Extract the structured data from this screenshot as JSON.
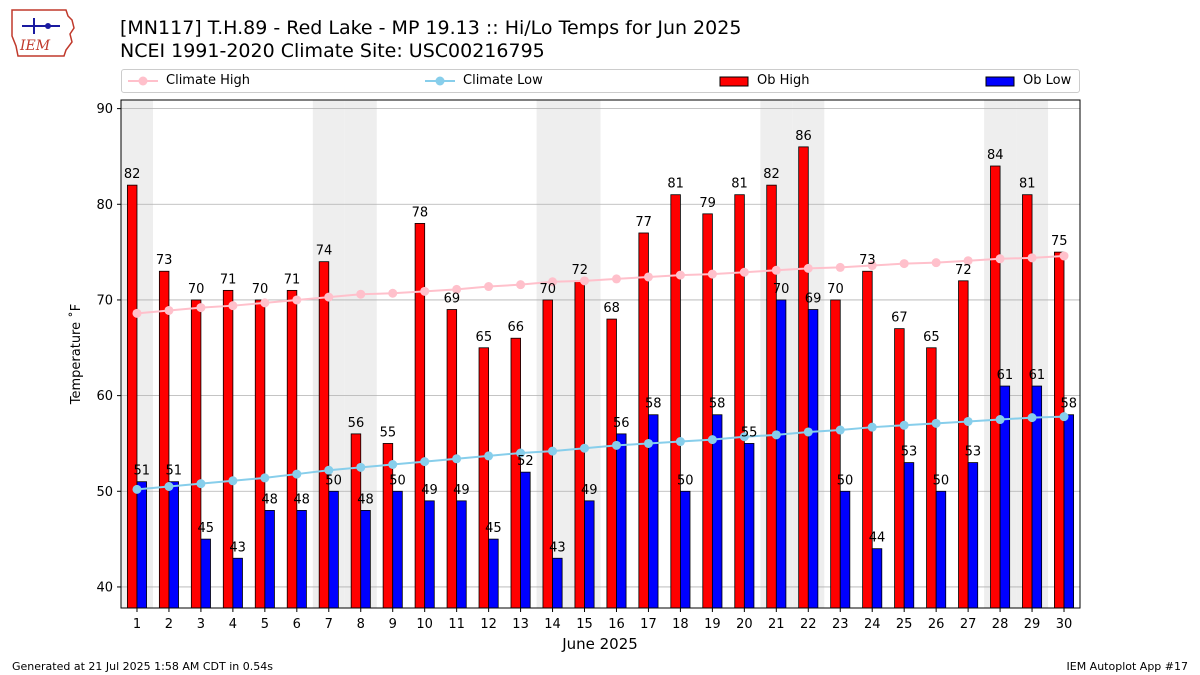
{
  "logo": {
    "text": "IEM"
  },
  "title": {
    "line1": "[MN117] T.H.89 - Red Lake - MP 19.13  :: Hi/Lo Temps for Jun 2025",
    "line2": "NCEI 1991-2020 Climate Site: USC00216795"
  },
  "legend": {
    "climate_high": "Climate High",
    "climate_low": "Climate Low",
    "ob_high": "Ob High",
    "ob_low": "Ob Low"
  },
  "colors": {
    "ob_high": "#ff0000",
    "ob_low": "#0000ff",
    "climate_high": "#ffc0cb",
    "climate_low": "#87ceeb",
    "weekend_band": "#eeeeee",
    "grid": "#b0b0b0"
  },
  "chart_data": {
    "type": "bar",
    "xlabel": "June 2025",
    "ylabel": "Temperature ˚F",
    "ylim": [
      37.8,
      90.9
    ],
    "yticks": [
      40,
      50,
      60,
      70,
      80,
      90
    ],
    "grid": "horizontal",
    "legend_placement": "top",
    "categories": [
      1,
      2,
      3,
      4,
      5,
      6,
      7,
      8,
      9,
      10,
      11,
      12,
      13,
      14,
      15,
      16,
      17,
      18,
      19,
      20,
      21,
      22,
      23,
      24,
      25,
      26,
      27,
      28,
      29,
      30
    ],
    "weekend_days": [
      1,
      7,
      8,
      14,
      15,
      21,
      22,
      28,
      29
    ],
    "series": [
      {
        "name": "Ob High",
        "kind": "bar",
        "values": [
          82,
          73,
          70,
          71,
          70,
          71,
          74,
          56,
          55,
          78,
          69,
          65,
          66,
          70,
          72,
          68,
          77,
          81,
          79,
          81,
          82,
          86,
          70,
          73,
          67,
          65,
          72,
          84,
          81,
          75
        ]
      },
      {
        "name": "Ob Low",
        "kind": "bar",
        "values": [
          51,
          51,
          45,
          43,
          48,
          48,
          50,
          48,
          50,
          49,
          49,
          45,
          52,
          43,
          49,
          56,
          58,
          50,
          58,
          55,
          70,
          69,
          50,
          44,
          53,
          50,
          53,
          61,
          61,
          58
        ]
      },
      {
        "name": "Climate High",
        "kind": "line",
        "values": [
          68.6,
          68.9,
          69.2,
          69.4,
          69.7,
          70.0,
          70.3,
          70.6,
          70.7,
          70.9,
          71.1,
          71.4,
          71.6,
          71.9,
          72.0,
          72.2,
          72.4,
          72.6,
          72.7,
          72.9,
          73.1,
          73.3,
          73.4,
          73.6,
          73.8,
          73.9,
          74.1,
          74.3,
          74.4,
          74.6
        ]
      },
      {
        "name": "Climate Low",
        "kind": "line",
        "values": [
          50.2,
          50.5,
          50.8,
          51.1,
          51.4,
          51.8,
          52.2,
          52.5,
          52.8,
          53.1,
          53.4,
          53.7,
          54.0,
          54.2,
          54.5,
          54.8,
          55.0,
          55.2,
          55.4,
          55.7,
          55.9,
          56.2,
          56.4,
          56.7,
          56.9,
          57.1,
          57.3,
          57.5,
          57.7,
          57.8
        ]
      }
    ]
  },
  "footer": {
    "left": "Generated at 21 Jul 2025 1:58 AM CDT in 0.54s",
    "right": "IEM Autoplot App #17"
  }
}
